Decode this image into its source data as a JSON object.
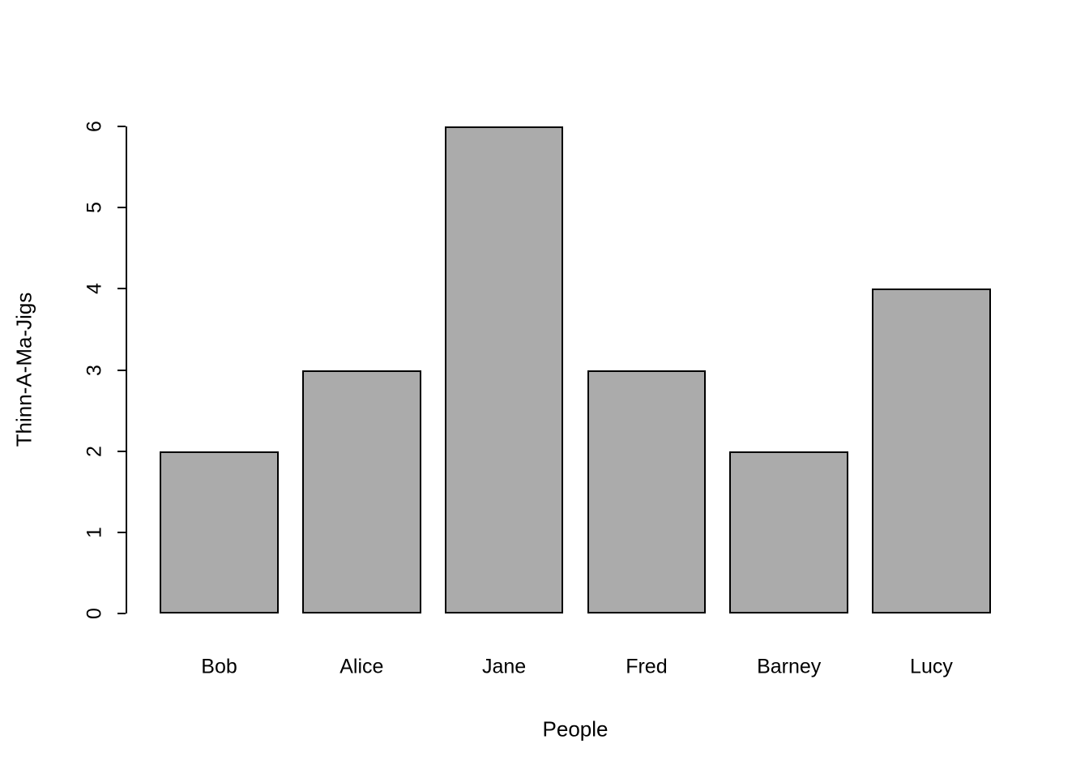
{
  "chart_data": {
    "type": "bar",
    "categories": [
      "Bob",
      "Alice",
      "Jane",
      "Fred",
      "Barney",
      "Lucy"
    ],
    "values": [
      2,
      3,
      6,
      3,
      2,
      4
    ],
    "title": "",
    "xlabel": "People",
    "ylabel": "Thinn-A-Ma-Jigs",
    "ylim": [
      0,
      6
    ],
    "yticks": [
      0,
      1,
      2,
      3,
      4,
      5,
      6
    ],
    "bar_color": "#ababab",
    "bar_border_color": "#000000",
    "axis_color": "#000000",
    "grid": false,
    "legend": "none",
    "bar_gap_ratio": 0.2
  }
}
